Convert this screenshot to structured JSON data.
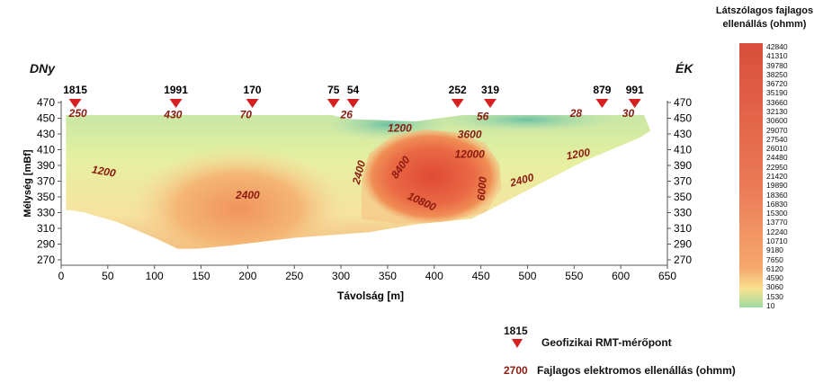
{
  "chart_data": {
    "type": "heatmap",
    "title": "",
    "xlabel": "Távolság [m]",
    "ylabel": "Mélység [mBf]",
    "xlim": [
      0,
      650
    ],
    "ylim": [
      270,
      470
    ],
    "x_ticks": [
      "0",
      "50",
      "100",
      "150",
      "200",
      "250",
      "300",
      "350",
      "400",
      "450",
      "500",
      "550",
      "600",
      "650"
    ],
    "y_ticks": [
      "470",
      "450",
      "430",
      "410",
      "390",
      "370",
      "350",
      "330",
      "310",
      "290",
      "270"
    ],
    "left_label": "DNy",
    "right_label": "ÉK",
    "colorscale": {
      "title_line1": "Látszólagos fajlagos",
      "title_line2": "ellenállás (ohmm)",
      "labels": [
        "42840",
        "41310",
        "39780",
        "38250",
        "36720",
        "35190",
        "33660",
        "32130",
        "30600",
        "29070",
        "27540",
        "26010",
        "24480",
        "22950",
        "21420",
        "19890",
        "18360",
        "16830",
        "15300",
        "13770",
        "12240",
        "10710",
        "9180",
        "7650",
        "6120",
        "4590",
        "3060",
        "1530",
        "10"
      ]
    },
    "stations": [
      {
        "name": "1815",
        "x": 15
      },
      {
        "name": "1991",
        "x": 123
      },
      {
        "name": "170",
        "x": 205
      },
      {
        "name": "75",
        "x": 292
      },
      {
        "name": "54",
        "x": 313
      },
      {
        "name": "252",
        "x": 425
      },
      {
        "name": "319",
        "x": 460
      },
      {
        "name": "879",
        "x": 580
      },
      {
        "name": "991",
        "x": 615
      }
    ],
    "annotations": [
      {
        "text": "250",
        "x": 18,
        "y": 452,
        "rot": 0
      },
      {
        "text": "430",
        "x": 120,
        "y": 450,
        "rot": 0
      },
      {
        "text": "70",
        "x": 198,
        "y": 450,
        "rot": 0
      },
      {
        "text": "26",
        "x": 306,
        "y": 450,
        "rot": 0
      },
      {
        "text": "56",
        "x": 452,
        "y": 448,
        "rot": 0
      },
      {
        "text": "28",
        "x": 552,
        "y": 452,
        "rot": 0
      },
      {
        "text": "30",
        "x": 608,
        "y": 452,
        "rot": 0
      },
      {
        "text": "1200",
        "x": 363,
        "y": 433,
        "rot": 0
      },
      {
        "text": "3600",
        "x": 438,
        "y": 425,
        "rot": 0
      },
      {
        "text": "12000",
        "x": 438,
        "y": 400,
        "rot": 0
      },
      {
        "text": "8400",
        "x": 367,
        "y": 385,
        "rot": -55
      },
      {
        "text": "2400",
        "x": 323,
        "y": 380,
        "rot": -75
      },
      {
        "text": "10800",
        "x": 385,
        "y": 340,
        "rot": 25
      },
      {
        "text": "6000",
        "x": 455,
        "y": 360,
        "rot": -85
      },
      {
        "text": "2400",
        "x": 495,
        "y": 367,
        "rot": -15
      },
      {
        "text": "1200",
        "x": 555,
        "y": 400,
        "rot": -10
      },
      {
        "text": "1200",
        "x": 45,
        "y": 378,
        "rot": 10
      },
      {
        "text": "2400",
        "x": 200,
        "y": 348,
        "rot": 0
      }
    ]
  },
  "legend": {
    "station_number": "1815",
    "station_label": "Geofizikai RMT-mérőpont",
    "value_example": "2700",
    "value_label": "Fajlagos elektromos ellenállás (ohmm)"
  },
  "colors": {
    "red_marker": "#d42020",
    "annotation_red": "#8b1a10",
    "high": "#e2563a",
    "mid": "#f3b468",
    "low": "#e4ee9a",
    "lowest": "#9ed5a8"
  }
}
